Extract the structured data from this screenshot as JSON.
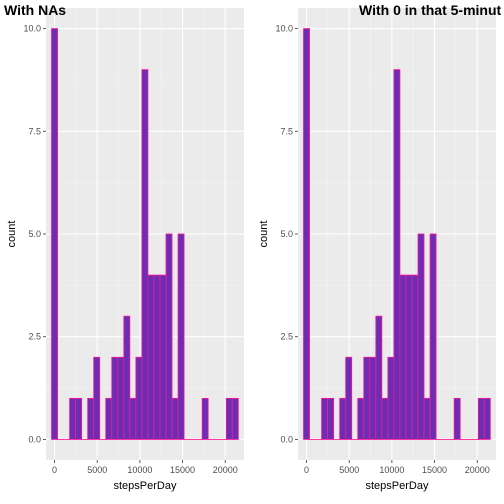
{
  "colors": {
    "panel_background": "#ebebeb",
    "grid_major": "#ffffff",
    "grid_minor": "#f5f5f5",
    "bar_fill": "#6a2eb4",
    "bar_outline": "#ff1493",
    "tick_text": "#4d4d4d"
  },
  "chart_data": [
    {
      "type": "bar",
      "title": "With NAs",
      "xlabel": "stepsPerDay",
      "ylabel": "count",
      "xlim": [
        -1000,
        22200
      ],
      "ylim": [
        -0.5,
        10.5
      ],
      "x_ticks": [
        0,
        5000,
        10000,
        15000,
        20000
      ],
      "x_tick_labels": [
        "0",
        "5000",
        "10000",
        "15000",
        "20000"
      ],
      "y_ticks": [
        0,
        2.5,
        5,
        7.5,
        10
      ],
      "y_tick_labels": [
        "0.0",
        "2.5",
        "5.0",
        "7.5",
        "10.0"
      ],
      "grid": true,
      "bin_start": -353,
      "bin_width": 706,
      "counts": [
        10,
        0,
        0,
        1,
        1,
        0,
        1,
        2,
        0,
        1,
        2,
        2,
        3,
        1,
        2,
        9,
        4,
        4,
        4,
        5,
        1,
        5,
        0,
        0,
        0,
        1,
        0,
        0,
        0,
        1,
        1
      ]
    },
    {
      "type": "bar",
      "title": "With 0 in that 5-minut",
      "xlabel": "stepsPerDay",
      "ylabel": "count",
      "xlim": [
        -1000,
        22200
      ],
      "ylim": [
        -0.5,
        10.5
      ],
      "x_ticks": [
        0,
        5000,
        10000,
        15000,
        20000
      ],
      "x_tick_labels": [
        "0",
        "5000",
        "10000",
        "15000",
        "20000"
      ],
      "y_ticks": [
        0,
        2.5,
        5,
        7.5,
        10
      ],
      "y_tick_labels": [
        "0.0",
        "2.5",
        "5.0",
        "7.5",
        "10.0"
      ],
      "grid": true,
      "bin_start": -353,
      "bin_width": 706,
      "counts": [
        10,
        0,
        0,
        1,
        1,
        0,
        1,
        2,
        0,
        1,
        2,
        2,
        3,
        1,
        2,
        9,
        4,
        4,
        4,
        5,
        1,
        5,
        0,
        0,
        0,
        1,
        0,
        0,
        0,
        1,
        1
      ]
    }
  ]
}
